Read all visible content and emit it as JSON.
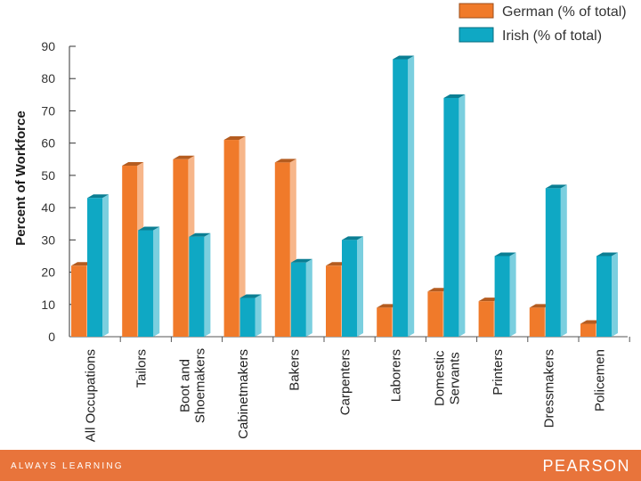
{
  "chart_data": {
    "type": "bar",
    "title": "",
    "xlabel": "",
    "ylabel": "Percent of Workforce",
    "ylim": [
      0,
      90
    ],
    "yticks": [
      0,
      10,
      20,
      30,
      40,
      50,
      60,
      70,
      80,
      90
    ],
    "grid": false,
    "legend_position": "top-right",
    "categories": [
      "All Occupations",
      "Tailors",
      "Boot and Shoemakers",
      "Cabinetmakers",
      "Bakers",
      "Carpenters",
      "Laborers",
      "Domestic Servants",
      "Printers",
      "Dressmakers",
      "Policemen"
    ],
    "category_label_lines": [
      [
        "All Occupations"
      ],
      [
        "Tailors"
      ],
      [
        "Boot and",
        "Shoemakers"
      ],
      [
        "Cabinetmakers"
      ],
      [
        "Bakers"
      ],
      [
        "Carpenters"
      ],
      [
        "Laborers"
      ],
      [
        "Domestic",
        "Servants"
      ],
      [
        "Printers"
      ],
      [
        "Dressmakers"
      ],
      [
        "Policemen"
      ]
    ],
    "series": [
      {
        "name": "German (% of total)",
        "color": "#f07a2a",
        "values": [
          22,
          53,
          55,
          61,
          54,
          22,
          9,
          14,
          11,
          9,
          4
        ]
      },
      {
        "name": "Irish (% of total)",
        "color": "#0fa8c4",
        "values": [
          43,
          33,
          31,
          12,
          23,
          30,
          86,
          74,
          25,
          46,
          25
        ]
      }
    ]
  },
  "footer": {
    "tagline": "ALWAYS LEARNING",
    "logo": "PEARSON",
    "color": "#e8743b"
  }
}
